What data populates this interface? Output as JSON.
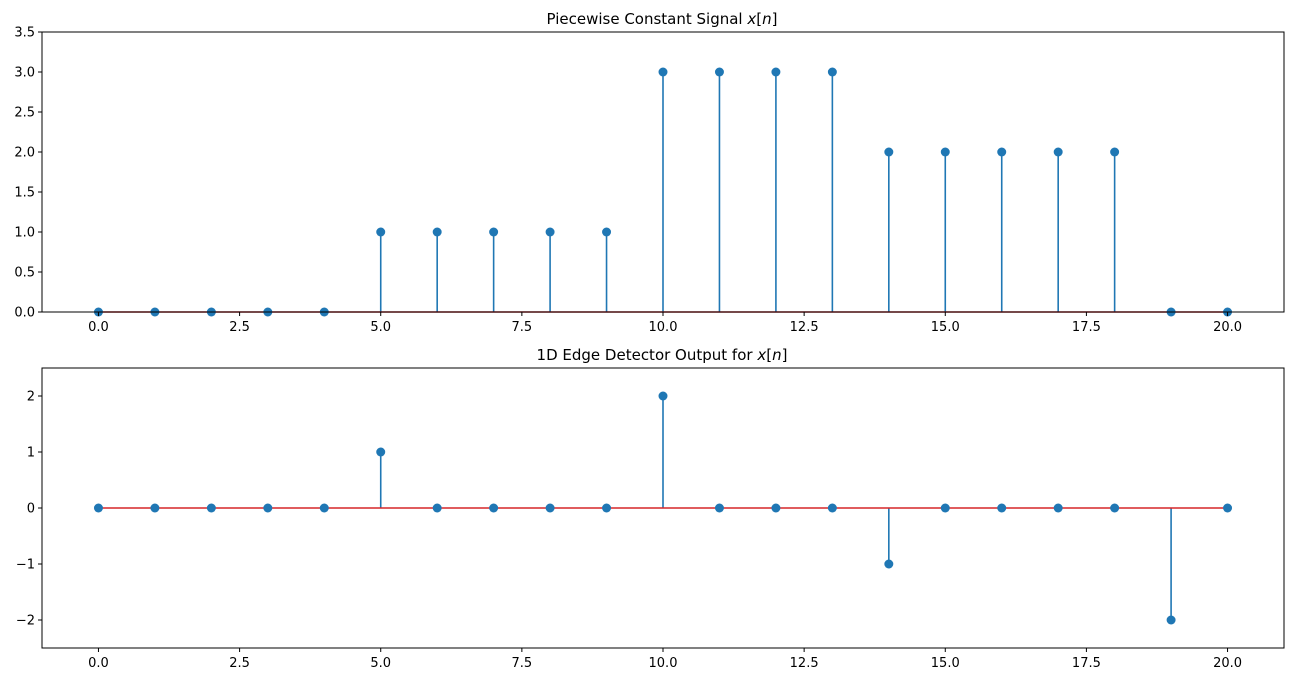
{
  "chart_data": [
    {
      "type": "stem",
      "title_prefix": "Piecewise Constant Signal ",
      "title_var": "x",
      "title_open": "[",
      "title_idx": "n",
      "title_close": "]",
      "xlabel": "",
      "ylabel": "",
      "x": [
        0,
        1,
        2,
        3,
        4,
        5,
        6,
        7,
        8,
        9,
        10,
        11,
        12,
        13,
        14,
        15,
        16,
        17,
        18,
        19,
        20
      ],
      "values": [
        0,
        0,
        0,
        0,
        0,
        1,
        1,
        1,
        1,
        1,
        3,
        3,
        3,
        3,
        2,
        2,
        2,
        2,
        2,
        0,
        0
      ],
      "xlim": [
        -1,
        21
      ],
      "ylim": [
        0,
        3.5
      ],
      "xticks": [
        0,
        2.5,
        5,
        7.5,
        10,
        12.5,
        15,
        17.5,
        20
      ],
      "xtick_labels": [
        "0.0",
        "2.5",
        "5.0",
        "7.5",
        "10.0",
        "12.5",
        "15.0",
        "17.5",
        "20.0"
      ],
      "yticks": [
        0,
        0.5,
        1,
        1.5,
        2,
        2.5,
        3,
        3.5
      ],
      "ytick_labels": [
        "0.0",
        "0.5",
        "1.0",
        "1.5",
        "2.0",
        "2.5",
        "3.0",
        "3.5"
      ],
      "grid": false,
      "stem_color": "#1f77b4",
      "baseline_color": "#d62728"
    },
    {
      "type": "stem",
      "title_prefix": "1D Edge Detector Output for ",
      "title_var": "x",
      "title_open": "[",
      "title_idx": "n",
      "title_close": "]",
      "xlabel": "",
      "ylabel": "",
      "x": [
        0,
        1,
        2,
        3,
        4,
        5,
        6,
        7,
        8,
        9,
        10,
        11,
        12,
        13,
        14,
        15,
        16,
        17,
        18,
        19,
        20
      ],
      "values": [
        0,
        0,
        0,
        0,
        0,
        1,
        0,
        0,
        0,
        0,
        2,
        0,
        0,
        0,
        -1,
        0,
        0,
        0,
        0,
        -2,
        0
      ],
      "xlim": [
        -1,
        21
      ],
      "ylim": [
        -2.5,
        2.5
      ],
      "xticks": [
        0,
        2.5,
        5,
        7.5,
        10,
        12.5,
        15,
        17.5,
        20
      ],
      "xtick_labels": [
        "0.0",
        "2.5",
        "5.0",
        "7.5",
        "10.0",
        "12.5",
        "15.0",
        "17.5",
        "20.0"
      ],
      "yticks": [
        -2,
        -1,
        0,
        1,
        2
      ],
      "ytick_labels": [
        "−2",
        "−1",
        "0",
        "1",
        "2"
      ],
      "grid": false,
      "stem_color": "#1f77b4",
      "baseline_color": "#d62728"
    }
  ]
}
